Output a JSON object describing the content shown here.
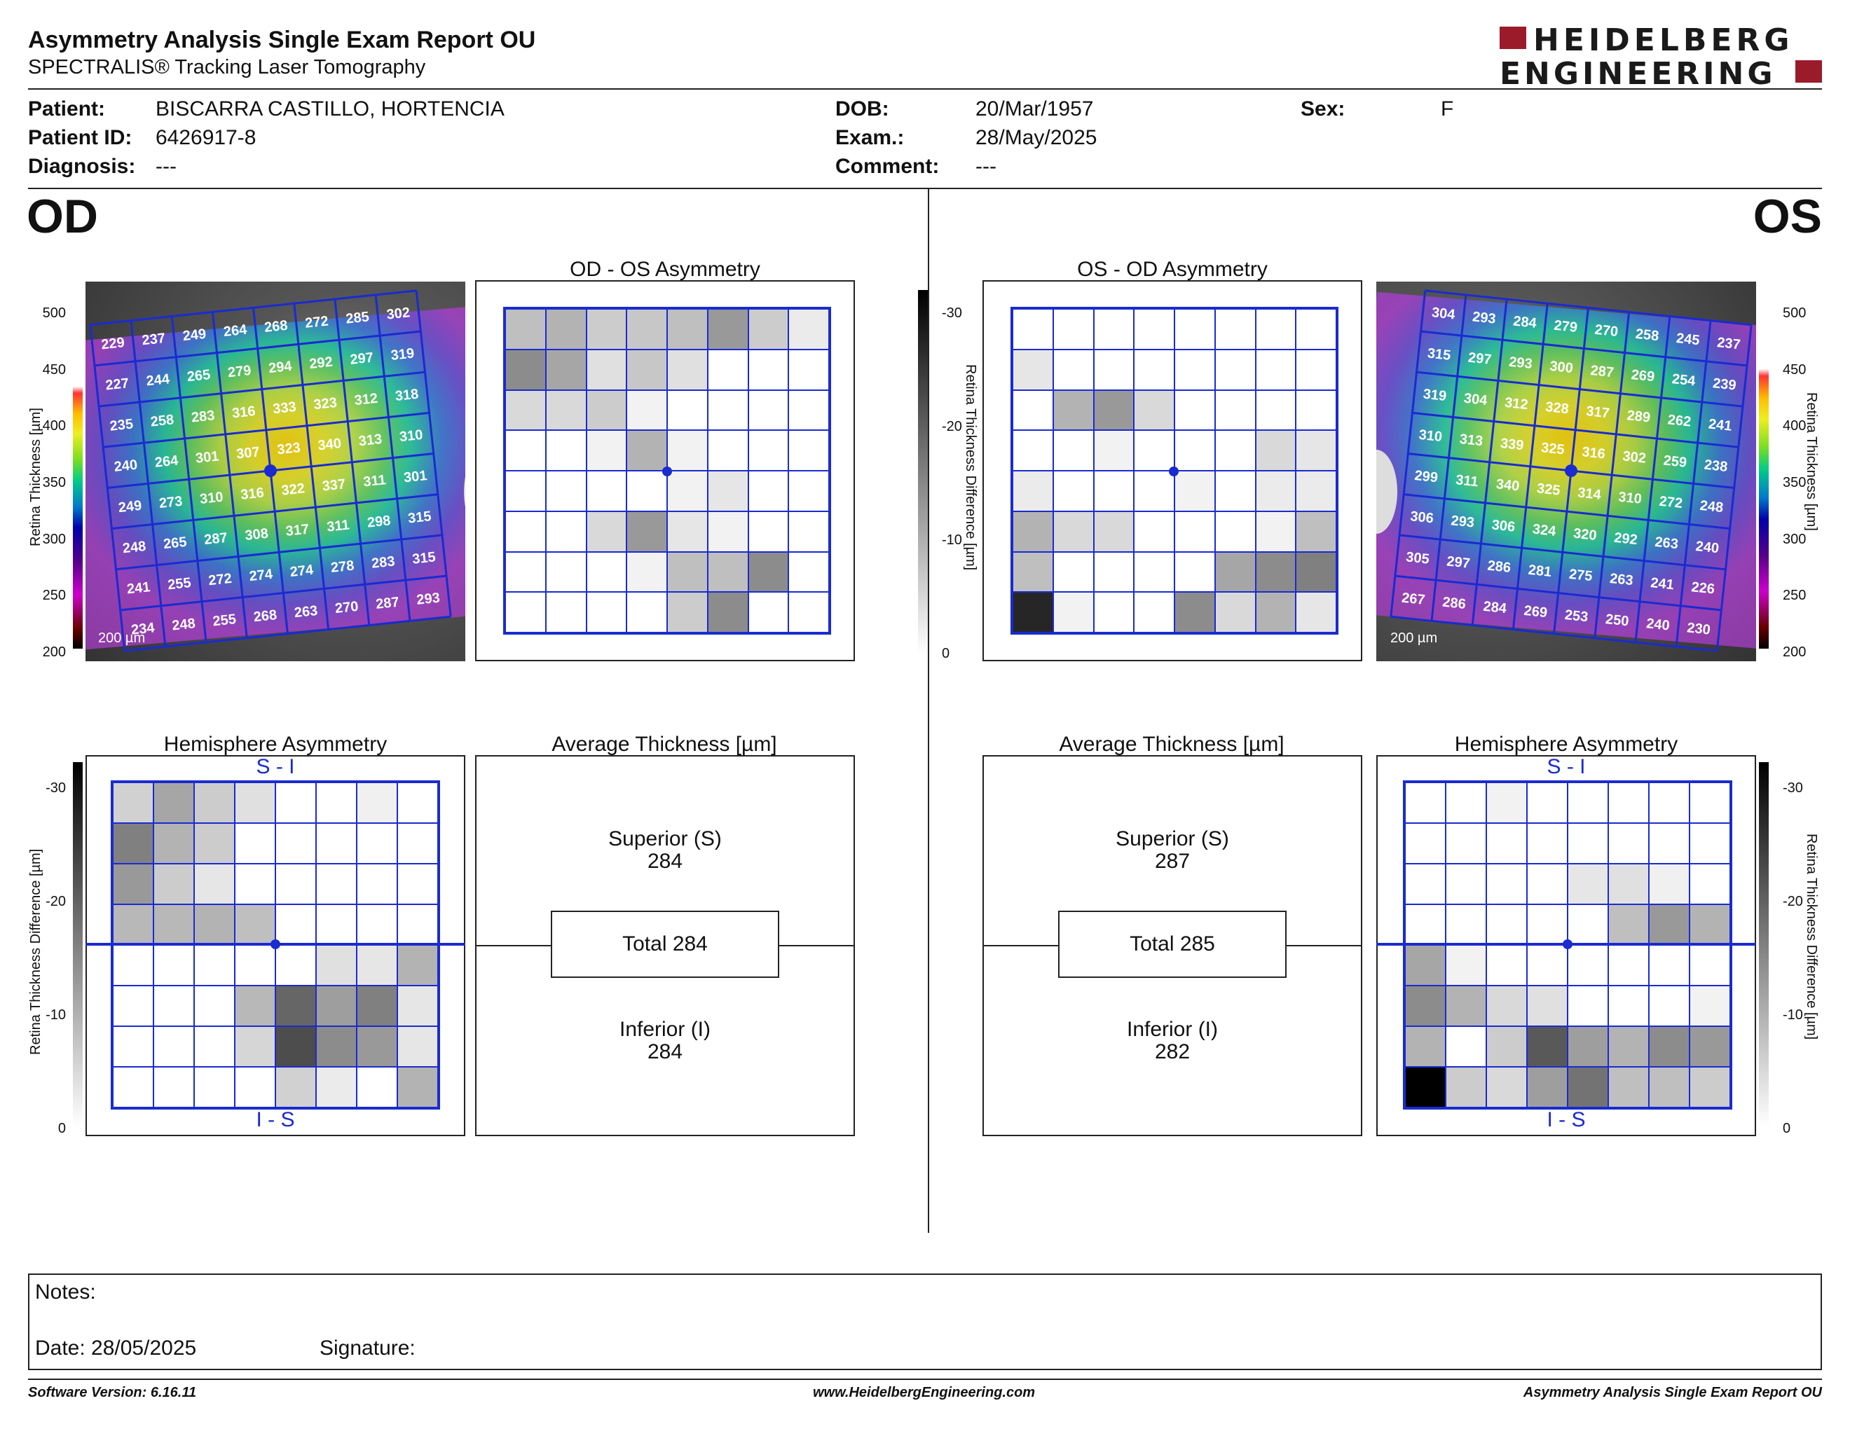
{
  "header": {
    "title": "Asymmetry Analysis Single Exam Report OU",
    "subtitle": "SPECTRALIS® Tracking Laser Tomography",
    "logo_line1": "HEIDELBERG",
    "logo_line2": "ENGINEERING"
  },
  "patient": {
    "patient_label": "Patient:",
    "patient_value": "BISCARRA CASTILLO, HORTENCIA",
    "id_label": "Patient ID:",
    "id_value": "6426917-8",
    "diagnosis_label": "Diagnosis:",
    "diagnosis_value": "---",
    "dob_label": "DOB:",
    "dob_value": "20/Mar/1957",
    "exam_label": "Exam.:",
    "exam_value": "28/May/2025",
    "comment_label": "Comment:",
    "comment_value": "---",
    "sex_label": "Sex:",
    "sex_value": "F"
  },
  "od": {
    "eye_label": "OD",
    "asym_title": "OD - OS Asymmetry",
    "hemi_title": "Hemisphere Asymmetry",
    "avg_title": "Average Thickness [µm]",
    "superior_label": "Superior (S)",
    "superior_value": "284",
    "total_label": "Total 284",
    "inferior_label": "Inferior (I)",
    "inferior_value": "284",
    "scale_text": "200 µm",
    "si_top": "S - I",
    "si_bottom": "I - S",
    "grid_values": [
      [
        229,
        237,
        249,
        264,
        268,
        272,
        285,
        302
      ],
      [
        227,
        244,
        265,
        279,
        294,
        292,
        297,
        319
      ],
      [
        235,
        258,
        283,
        316,
        333,
        323,
        312,
        318
      ],
      [
        240,
        264,
        301,
        307,
        323,
        340,
        313,
        310
      ],
      [
        249,
        273,
        310,
        316,
        322,
        337,
        311,
        301
      ],
      [
        248,
        265,
        287,
        308,
        317,
        311,
        298,
        315
      ],
      [
        241,
        255,
        272,
        274,
        274,
        278,
        283,
        315
      ],
      [
        234,
        248,
        255,
        268,
        263,
        270,
        287,
        293
      ]
    ],
    "asym_gray": [
      [
        0.25,
        0.3,
        0.2,
        0.22,
        0.25,
        0.4,
        0.2,
        0.08
      ],
      [
        0.45,
        0.35,
        0.12,
        0.22,
        0.12,
        0,
        0,
        0
      ],
      [
        0.15,
        0.15,
        0.2,
        0.05,
        0,
        0,
        0,
        0
      ],
      [
        0,
        0,
        0.05,
        0.3,
        0.05,
        0,
        0,
        0
      ],
      [
        0,
        0,
        0,
        0,
        0.05,
        0.1,
        0,
        0
      ],
      [
        0,
        0,
        0.15,
        0.4,
        0.1,
        0.05,
        0,
        0
      ],
      [
        0,
        0,
        0,
        0.05,
        0.25,
        0.25,
        0.45,
        0
      ],
      [
        0,
        0,
        0,
        0,
        0.2,
        0.45,
        0,
        0
      ]
    ],
    "hemi_gray": [
      [
        0.18,
        0.35,
        0.2,
        0.12,
        0,
        0,
        0.06,
        0
      ],
      [
        0.5,
        0.3,
        0.2,
        0,
        0,
        0,
        0,
        0
      ],
      [
        0.4,
        0.2,
        0.1,
        0,
        0,
        0,
        0,
        0
      ],
      [
        0.28,
        0.28,
        0.3,
        0.25,
        0,
        0,
        0,
        0
      ],
      [
        0,
        0,
        0,
        0,
        0,
        0.12,
        0.1,
        0.3
      ],
      [
        0,
        0,
        0,
        0.28,
        0.6,
        0.38,
        0.5,
        0.1
      ],
      [
        0,
        0,
        0,
        0.16,
        0.7,
        0.45,
        0.4,
        0.1
      ],
      [
        0,
        0,
        0,
        0,
        0.18,
        0.08,
        0,
        0.3
      ]
    ]
  },
  "os": {
    "eye_label": "OS",
    "asym_title": "OS - OD Asymmetry",
    "hemi_title": "Hemisphere Asymmetry",
    "avg_title": "Average Thickness [µm]",
    "superior_label": "Superior (S)",
    "superior_value": "287",
    "total_label": "Total 285",
    "inferior_label": "Inferior (I)",
    "inferior_value": "282",
    "scale_text": "200 µm",
    "si_top": "S - I",
    "si_bottom": "I - S",
    "grid_values": [
      [
        304,
        293,
        284,
        279,
        270,
        258,
        245,
        237
      ],
      [
        315,
        297,
        293,
        300,
        287,
        269,
        254,
        239
      ],
      [
        319,
        304,
        312,
        328,
        317,
        289,
        262,
        241
      ],
      [
        310,
        313,
        339,
        325,
        316,
        302,
        259,
        238
      ],
      [
        299,
        311,
        340,
        325,
        314,
        310,
        272,
        248
      ],
      [
        306,
        293,
        306,
        324,
        320,
        292,
        263,
        240
      ],
      [
        305,
        297,
        286,
        281,
        275,
        263,
        241,
        226
      ],
      [
        267,
        286,
        284,
        269,
        253,
        250,
        240,
        230
      ]
    ],
    "asym_gray": [
      [
        0,
        0,
        0,
        0,
        0,
        0,
        0,
        0
      ],
      [
        0.1,
        0,
        0,
        0,
        0,
        0,
        0,
        0
      ],
      [
        0,
        0.3,
        0.4,
        0.15,
        0,
        0,
        0,
        0
      ],
      [
        0,
        0,
        0.05,
        0,
        0,
        0,
        0.15,
        0.1
      ],
      [
        0.08,
        0,
        0,
        0,
        0.05,
        0,
        0.08,
        0.08
      ],
      [
        0.3,
        0.15,
        0.15,
        0,
        0,
        0,
        0.05,
        0.25
      ],
      [
        0.25,
        0,
        0,
        0,
        0,
        0.35,
        0.45,
        0.5
      ],
      [
        0.85,
        0.05,
        0,
        0,
        0.45,
        0.15,
        0.3,
        0.1
      ]
    ],
    "hemi_gray": [
      [
        0,
        0,
        0.05,
        0,
        0,
        0,
        0,
        0
      ],
      [
        0,
        0,
        0,
        0,
        0,
        0,
        0,
        0
      ],
      [
        0,
        0,
        0,
        0,
        0.1,
        0.12,
        0.06,
        0
      ],
      [
        0,
        0,
        0,
        0,
        0,
        0.25,
        0.4,
        0.3
      ],
      [
        0.35,
        0.05,
        0,
        0,
        0,
        0,
        0,
        0
      ],
      [
        0.45,
        0.3,
        0.15,
        0.12,
        0,
        0,
        0,
        0.05
      ],
      [
        0.3,
        0,
        0.2,
        0.65,
        0.38,
        0.3,
        0.45,
        0.4
      ],
      [
        1.0,
        0.2,
        0.15,
        0.38,
        0.55,
        0.25,
        0.25,
        0.2
      ]
    ]
  },
  "thickness_scale": [
    "500",
    "450",
    "400",
    "350",
    "300",
    "250",
    "200"
  ],
  "thickness_axis_label": "Retina  Thickness [µm]",
  "diff_scale": [
    "-30",
    "-20",
    "-10",
    "0"
  ],
  "diff_axis_label": "Retina Thickness Difference [µm]",
  "notes": {
    "notes_label": "Notes:",
    "date_label": "Date: 28/05/2025",
    "signature_label": "Signature:"
  },
  "footer": {
    "version": "Software Version: 6.16.11",
    "url": "www.HeidelbergEngineering.com",
    "report": "Asymmetry Analysis Single Exam Report OU"
  }
}
